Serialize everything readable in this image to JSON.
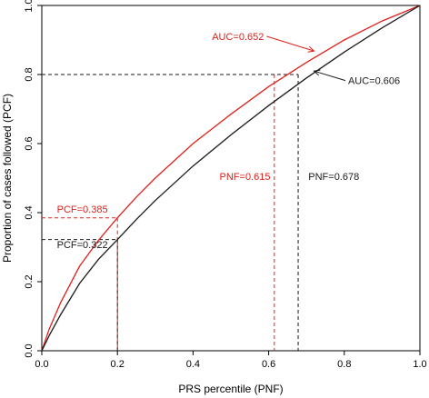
{
  "chart_data": {
    "type": "line",
    "title": "",
    "xlabel": "PRS percentile (PNF)",
    "ylabel": "Proportion of cases followed (PCF)",
    "xlim": [
      0,
      1
    ],
    "ylim": [
      0,
      1
    ],
    "x_ticks": [
      "0.0",
      "0.2",
      "0.4",
      "0.6",
      "0.8",
      "1.0"
    ],
    "y_ticks": [
      "0.0",
      "0.2",
      "0.4",
      "0.6",
      "0.8",
      "1.0"
    ],
    "grid": false,
    "series": [
      {
        "color": "#e0201b",
        "x": [
          0,
          0.02,
          0.05,
          0.1,
          0.15,
          0.2,
          0.25,
          0.3,
          0.4,
          0.5,
          0.6,
          0.7,
          0.8,
          0.9,
          1.0
        ],
        "y": [
          0,
          0.064,
          0.14,
          0.245,
          0.32,
          0.385,
          0.445,
          0.5,
          0.6,
          0.685,
          0.765,
          0.835,
          0.9,
          0.955,
          1.0
        ]
      },
      {
        "color": "#1a1a1a",
        "x": [
          0,
          0.02,
          0.05,
          0.1,
          0.15,
          0.2,
          0.25,
          0.3,
          0.4,
          0.5,
          0.6,
          0.7,
          0.8,
          0.9,
          1.0
        ],
        "y": [
          0,
          0.045,
          0.105,
          0.195,
          0.265,
          0.322,
          0.38,
          0.435,
          0.535,
          0.625,
          0.71,
          0.79,
          0.865,
          0.935,
          1.0
        ]
      }
    ],
    "reference_lines": [
      {
        "pnf": 0.2,
        "pcf": 0.385,
        "color": "#e0201b"
      },
      {
        "pnf": 0.2,
        "pcf": 0.322,
        "color": "#1a1a1a"
      },
      {
        "pnf": 0.615,
        "pcf": 0.8,
        "color": "#e0201b"
      },
      {
        "pnf": 0.678,
        "pcf": 0.8,
        "color": "#1a1a1a"
      }
    ],
    "annotations": [
      {
        "text": "AUC=0.652",
        "color": "#e0201b",
        "x": 0.45,
        "y": 0.9,
        "arrow_to": [
          0.72,
          0.868
        ]
      },
      {
        "text": "AUC=0.606",
        "color": "#1a1a1a",
        "x": 0.81,
        "y": 0.772,
        "arrow_to": [
          0.72,
          0.81
        ]
      },
      {
        "text": "PCF=0.385",
        "color": "#e0201b",
        "x": 0.04,
        "y": 0.4
      },
      {
        "text": "PCF=0.322",
        "color": "#1a1a1a",
        "x": 0.04,
        "y": 0.297
      },
      {
        "text": "PNF=0.615",
        "color": "#e0201b",
        "x": 0.47,
        "y": 0.495
      },
      {
        "text": "PNF=0.678",
        "color": "#1a1a1a",
        "x": 0.705,
        "y": 0.495
      }
    ]
  }
}
